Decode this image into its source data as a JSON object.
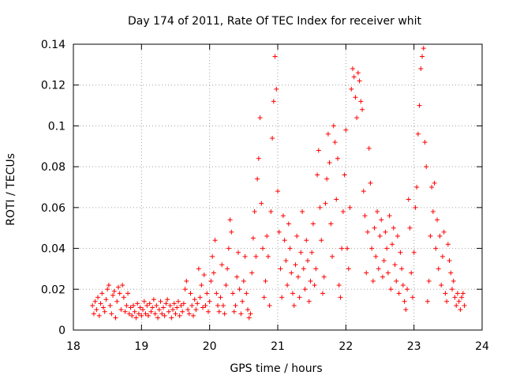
{
  "chart_data": {
    "type": "scatter",
    "title": "Day 174 of 2011, Rate Of TEC Index for receiver whit",
    "xlabel": "GPS time / hours",
    "ylabel": "ROTI / TECUs",
    "xlim": [
      18,
      24
    ],
    "ylim": [
      0,
      0.14
    ],
    "grid": true,
    "marker": "+",
    "marker_color": "#ff0000",
    "x_ticks": [
      18,
      19,
      20,
      21,
      22,
      23,
      24
    ],
    "x_tick_labels": [
      "18",
      "19",
      "20",
      "21",
      "22",
      "23",
      "24"
    ],
    "y_ticks": [
      0,
      0.02,
      0.04,
      0.06,
      0.08,
      0.1,
      0.12,
      0.14
    ],
    "y_tick_labels": [
      "0",
      "0.02",
      "0.04",
      "0.06",
      "0.08",
      "0.1",
      "0.12",
      "0.14"
    ],
    "series": [
      {
        "name": "ROTI",
        "points": [
          [
            18.28,
            0.012
          ],
          [
            18.3,
            0.008
          ],
          [
            18.32,
            0.014
          ],
          [
            18.34,
            0.01
          ],
          [
            18.36,
            0.016
          ],
          [
            18.38,
            0.007
          ],
          [
            18.4,
            0.013
          ],
          [
            18.42,
            0.018
          ],
          [
            18.44,
            0.011
          ],
          [
            18.46,
            0.009
          ],
          [
            18.48,
            0.015
          ],
          [
            18.5,
            0.02
          ],
          [
            18.52,
            0.022
          ],
          [
            18.54,
            0.012
          ],
          [
            18.56,
            0.008
          ],
          [
            18.58,
            0.017
          ],
          [
            18.6,
            0.019
          ],
          [
            18.62,
            0.006
          ],
          [
            18.64,
            0.014
          ],
          [
            18.66,
            0.021
          ],
          [
            18.68,
            0.018
          ],
          [
            18.7,
            0.01
          ],
          [
            18.72,
            0.022
          ],
          [
            18.74,
            0.016
          ],
          [
            18.76,
            0.009
          ],
          [
            18.78,
            0.012
          ],
          [
            18.8,
            0.018
          ],
          [
            18.82,
            0.008
          ],
          [
            18.84,
            0.011
          ],
          [
            18.86,
            0.007
          ],
          [
            18.88,
            0.012
          ],
          [
            18.9,
            0.009
          ],
          [
            18.92,
            0.006
          ],
          [
            18.94,
            0.013
          ],
          [
            18.96,
            0.008
          ],
          [
            18.98,
            0.011
          ],
          [
            19.0,
            0.007
          ],
          [
            19.02,
            0.01
          ],
          [
            19.04,
            0.014
          ],
          [
            19.06,
            0.008
          ],
          [
            19.08,
            0.012
          ],
          [
            19.1,
            0.007
          ],
          [
            19.12,
            0.013
          ],
          [
            19.14,
            0.009
          ],
          [
            19.16,
            0.011
          ],
          [
            19.18,
            0.015
          ],
          [
            19.2,
            0.008
          ],
          [
            19.22,
            0.012
          ],
          [
            19.24,
            0.006
          ],
          [
            19.26,
            0.01
          ],
          [
            19.28,
            0.014
          ],
          [
            19.3,
            0.008
          ],
          [
            19.32,
            0.011
          ],
          [
            19.34,
            0.007
          ],
          [
            19.36,
            0.013
          ],
          [
            19.38,
            0.015
          ],
          [
            19.4,
            0.009
          ],
          [
            19.42,
            0.012
          ],
          [
            19.44,
            0.006
          ],
          [
            19.46,
            0.01
          ],
          [
            19.48,
            0.013
          ],
          [
            19.5,
            0.008
          ],
          [
            19.52,
            0.011
          ],
          [
            19.54,
            0.014
          ],
          [
            19.56,
            0.007
          ],
          [
            19.58,
            0.012
          ],
          [
            19.6,
            0.009
          ],
          [
            19.62,
            0.013
          ],
          [
            19.64,
            0.02
          ],
          [
            19.66,
            0.024
          ],
          [
            19.68,
            0.01
          ],
          [
            19.7,
            0.008
          ],
          [
            19.72,
            0.018
          ],
          [
            19.74,
            0.012
          ],
          [
            19.76,
            0.007
          ],
          [
            19.78,
            0.015
          ],
          [
            19.8,
            0.01
          ],
          [
            19.82,
            0.013
          ],
          [
            19.84,
            0.03
          ],
          [
            19.86,
            0.016
          ],
          [
            19.88,
            0.022
          ],
          [
            19.9,
            0.011
          ],
          [
            19.92,
            0.027
          ],
          [
            19.94,
            0.012
          ],
          [
            19.96,
            0.018
          ],
          [
            19.98,
            0.009
          ],
          [
            20.0,
            0.014
          ],
          [
            20.02,
            0.024
          ],
          [
            20.04,
            0.036
          ],
          [
            20.06,
            0.028
          ],
          [
            20.08,
            0.044
          ],
          [
            20.1,
            0.018
          ],
          [
            20.12,
            0.012
          ],
          [
            20.14,
            0.009
          ],
          [
            20.16,
            0.016
          ],
          [
            20.18,
            0.032
          ],
          [
            20.2,
            0.012
          ],
          [
            20.22,
            0.008
          ],
          [
            20.24,
            0.022
          ],
          [
            20.26,
            0.03
          ],
          [
            20.28,
            0.04
          ],
          [
            20.3,
            0.054
          ],
          [
            20.32,
            0.048
          ],
          [
            20.34,
            0.018
          ],
          [
            20.36,
            0.009
          ],
          [
            20.38,
            0.012
          ],
          [
            20.4,
            0.026
          ],
          [
            20.42,
            0.038
          ],
          [
            20.44,
            0.02
          ],
          [
            20.46,
            0.008
          ],
          [
            20.48,
            0.014
          ],
          [
            20.5,
            0.024
          ],
          [
            20.52,
            0.036
          ],
          [
            20.54,
            0.018
          ],
          [
            20.56,
            0.01
          ],
          [
            20.58,
            0.006
          ],
          [
            20.6,
            0.008
          ],
          [
            20.62,
            0.028
          ],
          [
            20.64,
            0.045
          ],
          [
            20.66,
            0.058
          ],
          [
            20.68,
            0.036
          ],
          [
            20.7,
            0.074
          ],
          [
            20.72,
            0.084
          ],
          [
            20.74,
            0.104
          ],
          [
            20.76,
            0.062
          ],
          [
            20.78,
            0.04
          ],
          [
            20.8,
            0.016
          ],
          [
            20.82,
            0.024
          ],
          [
            20.84,
            0.046
          ],
          [
            20.86,
            0.036
          ],
          [
            20.88,
            0.012
          ],
          [
            20.9,
            0.058
          ],
          [
            20.92,
            0.094
          ],
          [
            20.94,
            0.112
          ],
          [
            20.96,
            0.134
          ],
          [
            20.98,
            0.118
          ],
          [
            21.0,
            0.068
          ],
          [
            21.02,
            0.048
          ],
          [
            21.04,
            0.03
          ],
          [
            21.06,
            0.016
          ],
          [
            21.08,
            0.056
          ],
          [
            21.1,
            0.044
          ],
          [
            21.12,
            0.034
          ],
          [
            21.14,
            0.022
          ],
          [
            21.16,
            0.052
          ],
          [
            21.18,
            0.04
          ],
          [
            21.2,
            0.028
          ],
          [
            21.22,
            0.018
          ],
          [
            21.24,
            0.012
          ],
          [
            21.26,
            0.032
          ],
          [
            21.28,
            0.046
          ],
          [
            21.3,
            0.026
          ],
          [
            21.32,
            0.016
          ],
          [
            21.34,
            0.038
          ],
          [
            21.36,
            0.058
          ],
          [
            21.38,
            0.03
          ],
          [
            21.4,
            0.02
          ],
          [
            21.42,
            0.044
          ],
          [
            21.44,
            0.034
          ],
          [
            21.46,
            0.014
          ],
          [
            21.48,
            0.024
          ],
          [
            21.5,
            0.038
          ],
          [
            21.52,
            0.052
          ],
          [
            21.54,
            0.022
          ],
          [
            21.56,
            0.03
          ],
          [
            21.58,
            0.076
          ],
          [
            21.6,
            0.088
          ],
          [
            21.62,
            0.06
          ],
          [
            21.64,
            0.044
          ],
          [
            21.66,
            0.018
          ],
          [
            21.68,
            0.026
          ],
          [
            21.7,
            0.062
          ],
          [
            21.72,
            0.074
          ],
          [
            21.74,
            0.096
          ],
          [
            21.76,
            0.082
          ],
          [
            21.78,
            0.052
          ],
          [
            21.8,
            0.036
          ],
          [
            21.82,
            0.1
          ],
          [
            21.84,
            0.092
          ],
          [
            21.86,
            0.064
          ],
          [
            21.88,
            0.084
          ],
          [
            21.9,
            0.022
          ],
          [
            21.92,
            0.016
          ],
          [
            21.94,
            0.04
          ],
          [
            21.96,
            0.058
          ],
          [
            21.98,
            0.076
          ],
          [
            22.0,
            0.098
          ],
          [
            22.02,
            0.04
          ],
          [
            22.04,
            0.03
          ],
          [
            22.06,
            0.06
          ],
          [
            22.08,
            0.118
          ],
          [
            22.1,
            0.128
          ],
          [
            22.12,
            0.124
          ],
          [
            22.14,
            0.114
          ],
          [
            22.16,
            0.104
          ],
          [
            22.18,
            0.126
          ],
          [
            22.2,
            0.122
          ],
          [
            22.22,
            0.112
          ],
          [
            22.24,
            0.108
          ],
          [
            22.26,
            0.068
          ],
          [
            22.28,
            0.056
          ],
          [
            22.3,
            0.028
          ],
          [
            22.32,
            0.048
          ],
          [
            22.34,
            0.089
          ],
          [
            22.36,
            0.072
          ],
          [
            22.38,
            0.04
          ],
          [
            22.4,
            0.024
          ],
          [
            22.42,
            0.05
          ],
          [
            22.44,
            0.036
          ],
          [
            22.46,
            0.058
          ],
          [
            22.48,
            0.03
          ],
          [
            22.5,
            0.046
          ],
          [
            22.52,
            0.054
          ],
          [
            22.54,
            0.026
          ],
          [
            22.56,
            0.034
          ],
          [
            22.58,
            0.048
          ],
          [
            22.6,
            0.04
          ],
          [
            22.62,
            0.028
          ],
          [
            22.64,
            0.056
          ],
          [
            22.66,
            0.02
          ],
          [
            22.68,
            0.042
          ],
          [
            22.7,
            0.05
          ],
          [
            22.72,
            0.032
          ],
          [
            22.74,
            0.024
          ],
          [
            22.76,
            0.046
          ],
          [
            22.78,
            0.018
          ],
          [
            22.8,
            0.038
          ],
          [
            22.82,
            0.03
          ],
          [
            22.84,
            0.022
          ],
          [
            22.86,
            0.014
          ],
          [
            22.88,
            0.01
          ],
          [
            22.9,
            0.02
          ],
          [
            22.92,
            0.064
          ],
          [
            22.94,
            0.05
          ],
          [
            22.96,
            0.028
          ],
          [
            22.98,
            0.016
          ],
          [
            23.0,
            0.038
          ],
          [
            23.02,
            0.06
          ],
          [
            23.04,
            0.07
          ],
          [
            23.06,
            0.096
          ],
          [
            23.08,
            0.11
          ],
          [
            23.1,
            0.128
          ],
          [
            23.12,
            0.134
          ],
          [
            23.14,
            0.138
          ],
          [
            23.16,
            0.092
          ],
          [
            23.18,
            0.08
          ],
          [
            23.2,
            0.014
          ],
          [
            23.22,
            0.024
          ],
          [
            23.24,
            0.046
          ],
          [
            23.26,
            0.07
          ],
          [
            23.28,
            0.058
          ],
          [
            23.3,
            0.072
          ],
          [
            23.32,
            0.04
          ],
          [
            23.34,
            0.054
          ],
          [
            23.36,
            0.03
          ],
          [
            23.38,
            0.046
          ],
          [
            23.4,
            0.022
          ],
          [
            23.42,
            0.036
          ],
          [
            23.44,
            0.048
          ],
          [
            23.46,
            0.018
          ],
          [
            23.48,
            0.014
          ],
          [
            23.5,
            0.042
          ],
          [
            23.52,
            0.034
          ],
          [
            23.54,
            0.028
          ],
          [
            23.56,
            0.02
          ],
          [
            23.58,
            0.024
          ],
          [
            23.6,
            0.016
          ],
          [
            23.62,
            0.012
          ],
          [
            23.64,
            0.018
          ],
          [
            23.66,
            0.014
          ],
          [
            23.68,
            0.01
          ],
          [
            23.7,
            0.016
          ],
          [
            23.72,
            0.018
          ],
          [
            23.74,
            0.012
          ]
        ]
      }
    ]
  }
}
